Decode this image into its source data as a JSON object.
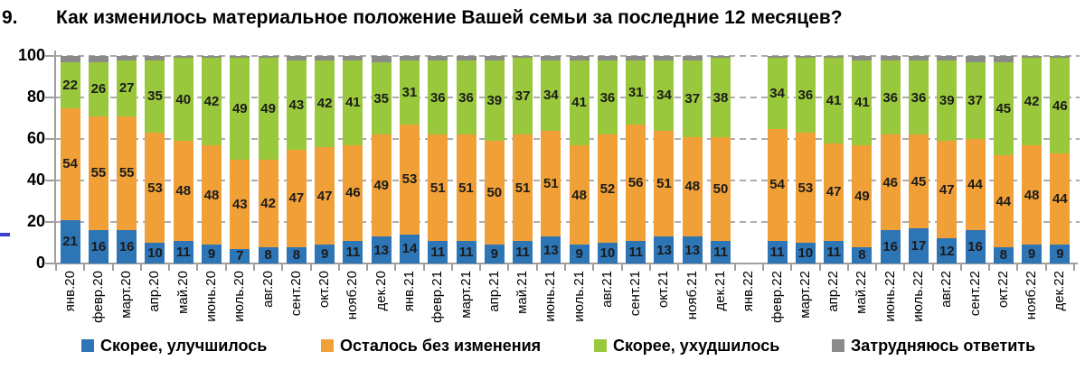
{
  "title": {
    "number": "9.",
    "text": "Как изменилось материальное положение Вашей семьи за последние 12 месяцев?"
  },
  "chart_data": {
    "type": "bar",
    "stacked": true,
    "title": "Как изменилось материальное положение Вашей семьи за последние 12 месяцев?",
    "xlabel": "",
    "ylabel": "",
    "ylim": [
      0,
      100
    ],
    "y_ticks": [
      0,
      20,
      40,
      60,
      80,
      100
    ],
    "grid": "horizontal-dashed",
    "legend_position": "bottom",
    "missing_category": "янв.22",
    "categories": [
      "янв.20",
      "февр.20",
      "март.20",
      "апр.20",
      "май.20",
      "июнь.20",
      "июль.20",
      "авг.20",
      "сент.20",
      "окт.20",
      "нояб.20",
      "дек.20",
      "янв.21",
      "февр.21",
      "март.21",
      "апр.21",
      "май.21",
      "июнь.21",
      "июль.21",
      "авг.21",
      "сент.21",
      "окт.21",
      "нояб.21",
      "дек.21",
      "янв.22",
      "февр.22",
      "март.22",
      "апр.22",
      "май.22",
      "июнь.22",
      "июль.22",
      "авг.22",
      "сент.22",
      "окт.22",
      "нояб.22",
      "дек.22"
    ],
    "series": [
      {
        "name": "Скорее, улучшилось",
        "color": "#2E75B6",
        "labels_shown": true,
        "values": [
          21,
          16,
          16,
          10,
          11,
          9,
          7,
          8,
          8,
          9,
          11,
          13,
          14,
          11,
          11,
          9,
          11,
          13,
          9,
          10,
          11,
          13,
          13,
          11,
          null,
          11,
          10,
          11,
          8,
          16,
          17,
          12,
          16,
          8,
          9,
          9
        ]
      },
      {
        "name": "Осталось без изменения",
        "color": "#F1A037",
        "labels_shown": true,
        "values": [
          54,
          55,
          55,
          53,
          48,
          48,
          43,
          42,
          47,
          47,
          46,
          49,
          53,
          51,
          51,
          50,
          51,
          51,
          48,
          52,
          56,
          51,
          48,
          50,
          null,
          54,
          53,
          47,
          49,
          46,
          45,
          47,
          44,
          44,
          48,
          44
        ]
      },
      {
        "name": "Скорее, ухудшилось",
        "color": "#9AC83C",
        "labels_shown": true,
        "values": [
          22,
          26,
          27,
          35,
          40,
          42,
          49,
          49,
          43,
          42,
          41,
          35,
          31,
          36,
          36,
          39,
          37,
          34,
          41,
          36,
          31,
          34,
          37,
          38,
          null,
          34,
          36,
          41,
          41,
          36,
          36,
          39,
          37,
          45,
          42,
          46
        ]
      },
      {
        "name": "Затрудняюсь ответить",
        "color": "#8A8A8A",
        "labels_shown": false,
        "values": [
          3,
          3,
          2,
          2,
          1,
          1,
          1,
          1,
          2,
          2,
          2,
          3,
          2,
          2,
          2,
          2,
          1,
          2,
          2,
          2,
          2,
          2,
          2,
          1,
          null,
          1,
          1,
          1,
          2,
          2,
          2,
          2,
          3,
          3,
          1,
          1
        ]
      }
    ]
  }
}
